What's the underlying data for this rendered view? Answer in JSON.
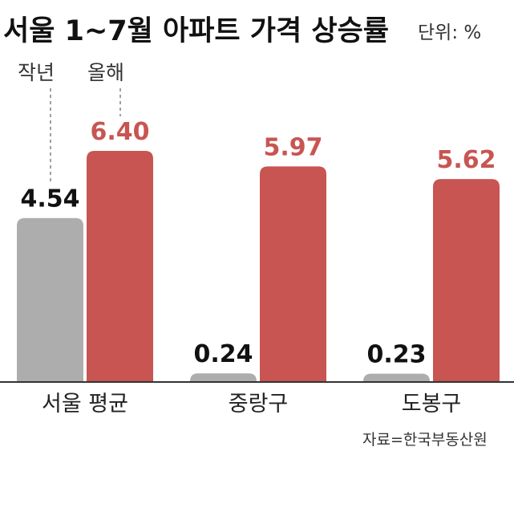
{
  "chart_data": {
    "type": "bar",
    "title": "서울 1~7월 아파트 가격 상승률",
    "unit_label": "단위: %",
    "categories": [
      "서울 평균",
      "중랑구",
      "도봉구"
    ],
    "series": [
      {
        "name": "작년",
        "values": [
          4.54,
          0.24,
          0.23
        ],
        "labels": [
          "4.54",
          "0.24",
          "0.23"
        ],
        "color": "#adadad",
        "label_color": "#111111"
      },
      {
        "name": "올해",
        "values": [
          6.4,
          5.97,
          5.62
        ],
        "labels": [
          "6.40",
          "5.97",
          "5.62"
        ],
        "color": "#c85552",
        "label_color": "#c85552"
      }
    ],
    "ylim": [
      0,
      6.4
    ],
    "grid": false,
    "legend_position": "top-left",
    "source": "자료=한국부동산원"
  }
}
